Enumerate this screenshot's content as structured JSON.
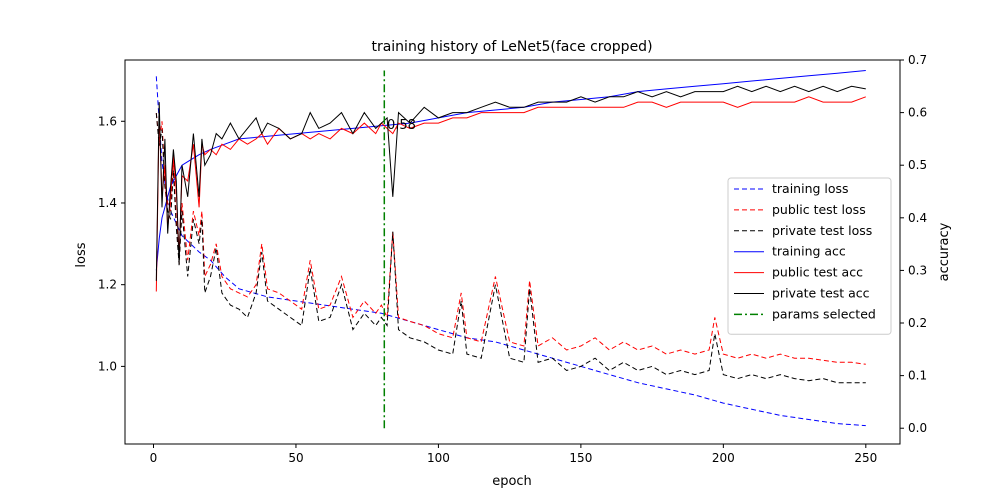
{
  "chart_data": {
    "type": "line",
    "title": "training history of LeNet5(face cropped)",
    "xlabel": "epoch",
    "ylabel_left": "loss",
    "ylabel_right": "accuracy",
    "xlim": [
      -10,
      262
    ],
    "ylim_left": [
      0.81,
      1.75
    ],
    "ylim_right": [
      -0.03,
      0.7
    ],
    "x_ticks": [
      0,
      50,
      100,
      150,
      200,
      250
    ],
    "y_left_ticks": [
      1.0,
      1.2,
      1.4,
      1.6
    ],
    "y_right_ticks": [
      0.0,
      0.1,
      0.2,
      0.3,
      0.4,
      0.5,
      0.6,
      0.7
    ],
    "grid": false,
    "legend_position": "center-right",
    "annotation": {
      "text": "0.58",
      "x": 81
    },
    "series": [
      {
        "name": "training loss",
        "axis": "left",
        "style": "dashed",
        "color": "#0000ff",
        "x": [
          1,
          2,
          3,
          4,
          5,
          6,
          8,
          10,
          13,
          16,
          20,
          25,
          30,
          40,
          50,
          60,
          70,
          80,
          90,
          100,
          110,
          120,
          130,
          140,
          150,
          160,
          170,
          180,
          190,
          200,
          210,
          220,
          230,
          240,
          250
        ],
        "y": [
          1.71,
          1.6,
          1.5,
          1.45,
          1.41,
          1.38,
          1.35,
          1.32,
          1.3,
          1.28,
          1.26,
          1.22,
          1.19,
          1.17,
          1.16,
          1.15,
          1.14,
          1.13,
          1.11,
          1.09,
          1.07,
          1.06,
          1.04,
          1.02,
          1.0,
          0.98,
          0.96,
          0.945,
          0.93,
          0.91,
          0.895,
          0.88,
          0.87,
          0.86,
          0.855
        ]
      },
      {
        "name": "public test loss",
        "axis": "left",
        "style": "dashed",
        "color": "#ff0000",
        "x": [
          1,
          2,
          3,
          4,
          5,
          6,
          7,
          8,
          9,
          10,
          12,
          14,
          16,
          17,
          18,
          20,
          22,
          24,
          27,
          30,
          33,
          36,
          38,
          40,
          44,
          48,
          52,
          55,
          58,
          62,
          66,
          70,
          74,
          78,
          80,
          82,
          84,
          86,
          90,
          95,
          100,
          105,
          108,
          110,
          115,
          120,
          125,
          130,
          132,
          135,
          140,
          145,
          150,
          155,
          160,
          165,
          170,
          175,
          180,
          185,
          190,
          195,
          197,
          200,
          205,
          210,
          215,
          220,
          225,
          230,
          235,
          240,
          245,
          250
        ],
        "y": [
          1.62,
          1.55,
          1.6,
          1.46,
          1.4,
          1.38,
          1.5,
          1.36,
          1.25,
          1.4,
          1.26,
          1.38,
          1.32,
          1.38,
          1.22,
          1.25,
          1.3,
          1.22,
          1.19,
          1.18,
          1.17,
          1.2,
          1.3,
          1.19,
          1.18,
          1.16,
          1.14,
          1.26,
          1.14,
          1.15,
          1.22,
          1.12,
          1.16,
          1.13,
          1.15,
          1.12,
          1.33,
          1.12,
          1.11,
          1.1,
          1.08,
          1.07,
          1.18,
          1.07,
          1.06,
          1.22,
          1.06,
          1.05,
          1.21,
          1.05,
          1.07,
          1.04,
          1.05,
          1.07,
          1.04,
          1.06,
          1.04,
          1.05,
          1.03,
          1.04,
          1.03,
          1.04,
          1.12,
          1.03,
          1.02,
          1.03,
          1.02,
          1.03,
          1.02,
          1.02,
          1.015,
          1.01,
          1.01,
          1.005
        ]
      },
      {
        "name": "private test loss",
        "axis": "left",
        "style": "dashed",
        "color": "#000000",
        "x": [
          1,
          2,
          3,
          4,
          5,
          6,
          7,
          8,
          9,
          10,
          12,
          14,
          16,
          17,
          18,
          20,
          22,
          24,
          27,
          30,
          33,
          36,
          38,
          40,
          44,
          48,
          52,
          55,
          58,
          62,
          66,
          70,
          74,
          78,
          80,
          82,
          84,
          86,
          90,
          95,
          100,
          105,
          108,
          110,
          115,
          120,
          125,
          130,
          132,
          135,
          140,
          145,
          150,
          155,
          160,
          165,
          170,
          175,
          180,
          185,
          190,
          195,
          197,
          200,
          205,
          210,
          215,
          220,
          225,
          230,
          235,
          240,
          245,
          250
        ],
        "y": [
          1.62,
          1.54,
          1.58,
          1.44,
          1.38,
          1.36,
          1.48,
          1.34,
          1.25,
          1.38,
          1.22,
          1.36,
          1.3,
          1.36,
          1.18,
          1.22,
          1.29,
          1.18,
          1.15,
          1.14,
          1.12,
          1.18,
          1.28,
          1.16,
          1.14,
          1.12,
          1.1,
          1.24,
          1.11,
          1.12,
          1.2,
          1.09,
          1.13,
          1.1,
          1.12,
          1.1,
          1.33,
          1.09,
          1.07,
          1.06,
          1.04,
          1.03,
          1.16,
          1.03,
          1.02,
          1.2,
          1.02,
          1.01,
          1.19,
          1.01,
          1.02,
          0.99,
          1.0,
          1.02,
          0.99,
          1.01,
          0.99,
          1.0,
          0.98,
          0.99,
          0.98,
          0.99,
          1.08,
          0.98,
          0.97,
          0.98,
          0.97,
          0.98,
          0.97,
          0.965,
          0.97,
          0.96,
          0.96,
          0.96
        ]
      },
      {
        "name": "training acc",
        "axis": "right",
        "style": "solid",
        "color": "#0000ff",
        "x": [
          1,
          2,
          3,
          4,
          5,
          6,
          8,
          10,
          13,
          16,
          20,
          25,
          30,
          40,
          50,
          60,
          70,
          80,
          90,
          100,
          110,
          120,
          130,
          140,
          150,
          160,
          170,
          180,
          190,
          200,
          210,
          220,
          230,
          240,
          250
        ],
        "y": [
          0.3,
          0.36,
          0.4,
          0.42,
          0.44,
          0.46,
          0.48,
          0.5,
          0.51,
          0.52,
          0.53,
          0.54,
          0.55,
          0.555,
          0.56,
          0.565,
          0.57,
          0.575,
          0.58,
          0.59,
          0.6,
          0.605,
          0.61,
          0.62,
          0.625,
          0.63,
          0.64,
          0.645,
          0.65,
          0.655,
          0.66,
          0.665,
          0.67,
          0.675,
          0.68
        ]
      },
      {
        "name": "public test acc",
        "axis": "right",
        "style": "solid",
        "color": "#ff0000",
        "x": [
          1,
          2,
          3,
          4,
          5,
          6,
          7,
          8,
          9,
          10,
          12,
          14,
          16,
          17,
          18,
          20,
          22,
          24,
          27,
          30,
          33,
          36,
          38,
          40,
          44,
          48,
          52,
          55,
          58,
          62,
          66,
          70,
          74,
          78,
          80,
          82,
          84,
          86,
          90,
          95,
          100,
          105,
          110,
          115,
          120,
          125,
          130,
          135,
          140,
          145,
          150,
          155,
          160,
          165,
          170,
          175,
          180,
          185,
          190,
          195,
          200,
          205,
          210,
          215,
          220,
          225,
          230,
          235,
          240,
          245,
          250
        ],
        "y": [
          0.26,
          0.6,
          0.44,
          0.5,
          0.38,
          0.44,
          0.52,
          0.45,
          0.33,
          0.48,
          0.47,
          0.54,
          0.42,
          0.54,
          0.52,
          0.53,
          0.52,
          0.54,
          0.53,
          0.55,
          0.54,
          0.55,
          0.56,
          0.54,
          0.57,
          0.55,
          0.56,
          0.55,
          0.56,
          0.55,
          0.57,
          0.56,
          0.58,
          0.56,
          0.58,
          0.57,
          0.56,
          0.58,
          0.57,
          0.58,
          0.58,
          0.59,
          0.59,
          0.6,
          0.6,
          0.6,
          0.6,
          0.61,
          0.61,
          0.61,
          0.61,
          0.61,
          0.61,
          0.61,
          0.62,
          0.62,
          0.61,
          0.62,
          0.62,
          0.62,
          0.62,
          0.61,
          0.62,
          0.62,
          0.62,
          0.62,
          0.63,
          0.62,
          0.62,
          0.62,
          0.63
        ]
      },
      {
        "name": "private test acc",
        "axis": "right",
        "style": "solid",
        "color": "#000000",
        "x": [
          1,
          2,
          3,
          4,
          5,
          6,
          7,
          8,
          9,
          10,
          12,
          14,
          16,
          17,
          18,
          20,
          22,
          24,
          27,
          30,
          33,
          36,
          38,
          40,
          44,
          48,
          52,
          55,
          58,
          62,
          66,
          70,
          74,
          78,
          80,
          82,
          84,
          86,
          90,
          95,
          100,
          105,
          110,
          115,
          120,
          125,
          130,
          135,
          140,
          145,
          150,
          155,
          160,
          165,
          170,
          175,
          180,
          185,
          190,
          195,
          200,
          205,
          210,
          215,
          220,
          225,
          230,
          235,
          240,
          245,
          250
        ],
        "y": [
          0.28,
          0.62,
          0.42,
          0.55,
          0.37,
          0.46,
          0.53,
          0.47,
          0.31,
          0.5,
          0.44,
          0.56,
          0.44,
          0.55,
          0.5,
          0.52,
          0.56,
          0.55,
          0.58,
          0.55,
          0.57,
          0.59,
          0.56,
          0.58,
          0.57,
          0.55,
          0.56,
          0.6,
          0.57,
          0.58,
          0.6,
          0.56,
          0.6,
          0.57,
          0.58,
          0.59,
          0.44,
          0.6,
          0.58,
          0.61,
          0.59,
          0.6,
          0.6,
          0.61,
          0.62,
          0.61,
          0.61,
          0.62,
          0.62,
          0.62,
          0.63,
          0.62,
          0.63,
          0.63,
          0.64,
          0.63,
          0.64,
          0.63,
          0.64,
          0.64,
          0.64,
          0.65,
          0.64,
          0.65,
          0.64,
          0.65,
          0.64,
          0.65,
          0.64,
          0.65,
          0.645
        ]
      },
      {
        "name": "params selected",
        "axis": "right",
        "style": "dashdot",
        "color": "#008000",
        "x": [
          81,
          81
        ],
        "y": [
          0.0,
          0.68
        ]
      }
    ]
  }
}
